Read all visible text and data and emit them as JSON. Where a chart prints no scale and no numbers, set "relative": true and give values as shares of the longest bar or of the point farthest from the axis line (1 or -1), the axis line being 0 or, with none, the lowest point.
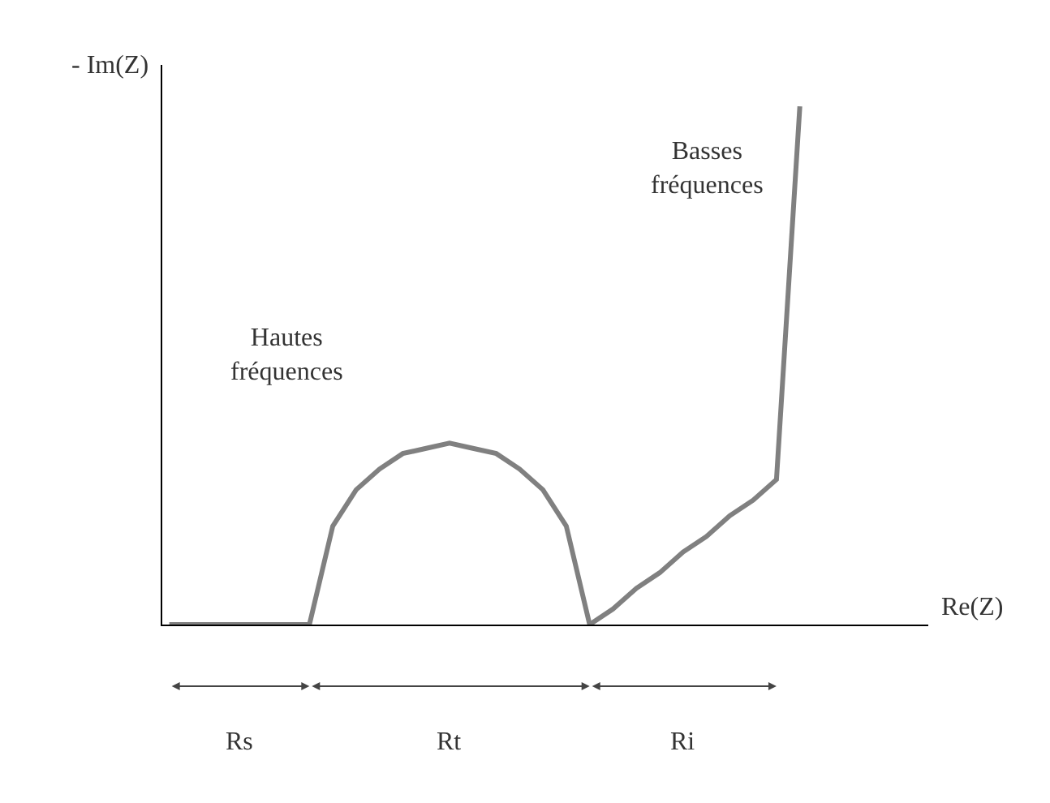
{
  "chart_data": {
    "type": "line",
    "relative": true,
    "xlabel": "Re(Z)",
    "ylabel": "- Im(Z)",
    "categories": [
      null,
      null,
      null,
      null,
      null,
      null,
      null,
      null,
      null,
      null,
      null,
      null,
      null,
      null,
      null,
      null,
      null,
      null,
      null,
      null,
      null,
      null,
      null,
      null,
      null,
      null,
      null,
      null
    ],
    "series": [
      {
        "color": "#808080",
        "values": [
          0,
          0,
          0,
          0,
          0,
          0,
          0,
          0.19,
          0.26,
          0.3,
          0.33,
          0.34,
          0.35,
          0.34,
          0.33,
          0.3,
          0.26,
          0.19,
          0,
          0.03,
          0.07,
          0.1,
          0.14,
          0.17,
          0.21,
          0.24,
          0.28,
          1
        ]
      }
    ],
    "annotations": [
      "Hautes fréquences",
      "Basses fréquences",
      "Rs",
      "Rt",
      "Ri"
    ],
    "marker": "none",
    "line_style": "solid"
  }
}
